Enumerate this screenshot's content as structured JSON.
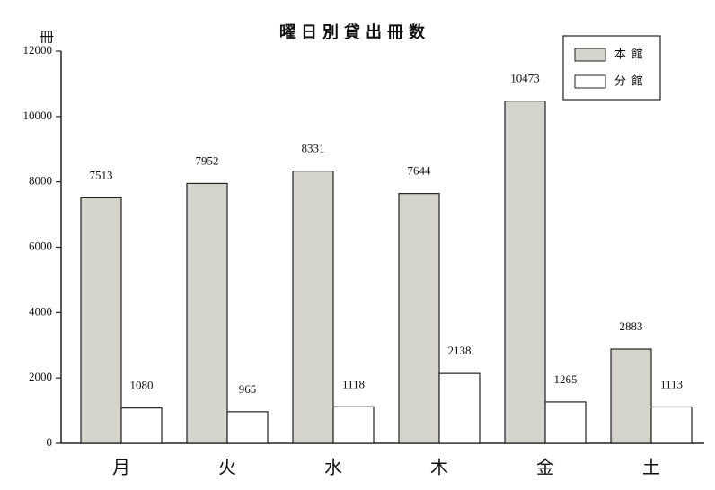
{
  "chart_data": {
    "type": "bar",
    "title": "曜日別貸出冊数",
    "y_label": "冊",
    "categories": [
      "月",
      "火",
      "水",
      "木",
      "金",
      "土"
    ],
    "series": [
      {
        "name": "本館",
        "color": "#d4d4cc",
        "values": [
          7513,
          7952,
          8331,
          7644,
          10473,
          2883
        ]
      },
      {
        "name": "分館",
        "color": "#ffffff",
        "values": [
          1080,
          965,
          1118,
          2138,
          1265,
          1113
        ]
      }
    ],
    "ylim": [
      0,
      12000
    ],
    "yticks": [
      0,
      2000,
      4000,
      6000,
      8000,
      10000,
      12000
    ],
    "legend": "upper right",
    "grid": false
  }
}
